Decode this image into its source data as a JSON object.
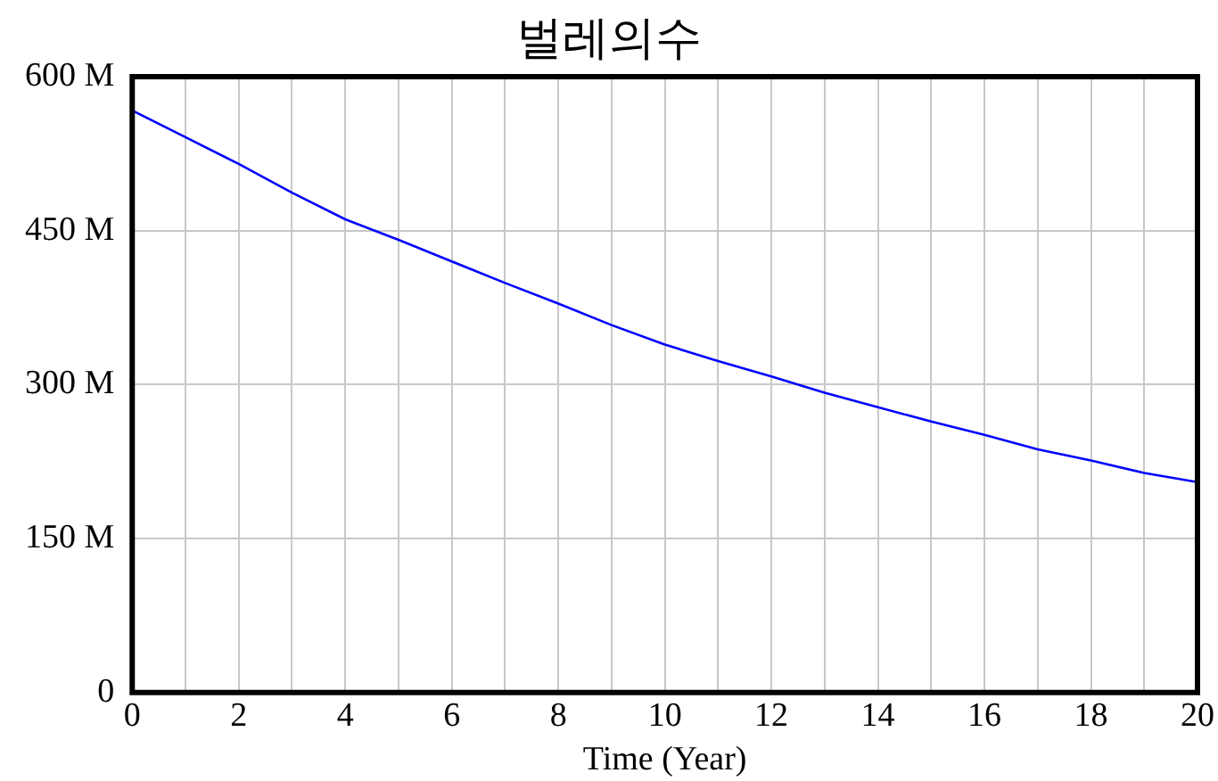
{
  "chart_data": {
    "type": "line",
    "title": "벌레의수",
    "xlabel": "Time (Year)",
    "x": [
      0,
      1,
      2,
      3,
      4,
      5,
      6,
      7,
      8,
      9,
      10,
      11,
      12,
      13,
      14,
      15,
      16,
      17,
      18,
      19,
      20
    ],
    "series": [
      {
        "color": "#0000ff",
        "values": [
          567000000,
          541000000,
          515000000,
          487000000,
          461000000,
          441000000,
          420000000,
          399000000,
          379000000,
          358000000,
          339000000,
          323000000,
          308000000,
          292000000,
          278000000,
          264000000,
          251000000,
          237000000,
          226000000,
          214000000,
          205000000
        ]
      }
    ],
    "xlim": [
      0,
      20
    ],
    "xticks": [
      0,
      {
        "value": 1,
        "label": null
      },
      2,
      {
        "value": 3,
        "label": null
      },
      4,
      {
        "value": 5,
        "label": null
      },
      6,
      {
        "value": 7,
        "label": null
      },
      8,
      {
        "value": 9,
        "label": null
      },
      10,
      {
        "value": 11,
        "label": null
      },
      12,
      {
        "value": 13,
        "label": null
      },
      14,
      {
        "value": 15,
        "label": null
      },
      16,
      {
        "value": 17,
        "label": null
      },
      18,
      {
        "value": 19,
        "label": null
      },
      20
    ],
    "ylim": [
      0,
      600000000
    ],
    "yticks": [
      {
        "value": 0,
        "label": "0"
      },
      {
        "value": 150000000,
        "label": "150 M"
      },
      {
        "value": 300000000,
        "label": "300 M"
      },
      {
        "value": 450000000,
        "label": "450 M"
      },
      {
        "value": 600000000,
        "label": "600 M"
      }
    ],
    "grid": true,
    "marker": "none",
    "line_style": "solid"
  }
}
